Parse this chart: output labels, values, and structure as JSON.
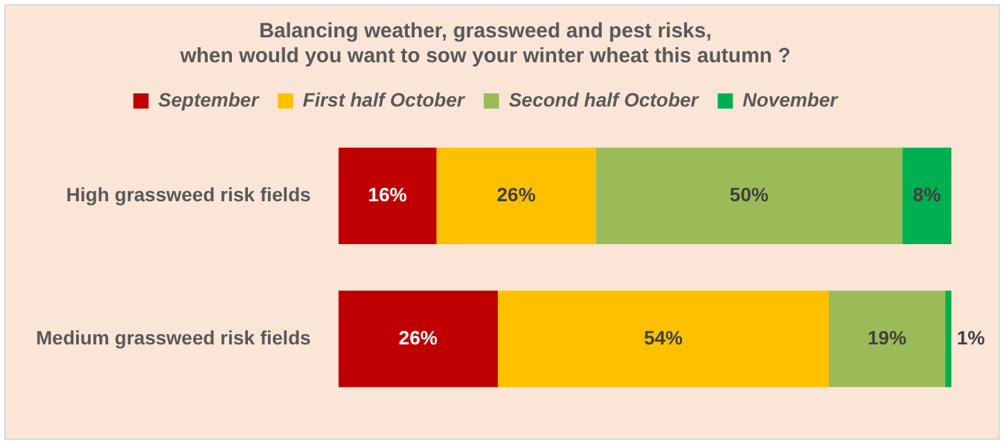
{
  "chart_data": {
    "type": "bar",
    "orientation": "horizontal",
    "stacked": true,
    "title": "Balancing weather, grassweed and pest risks,\nwhen would you want to sow your winter wheat this autumn ?",
    "categories": [
      "High grassweed risk fields",
      "Medium grassweed risk fields"
    ],
    "series": [
      {
        "name": "September",
        "color": "#c00000",
        "values": [
          16,
          26
        ],
        "value_labels": [
          "16%",
          "26%"
        ]
      },
      {
        "name": "First half October",
        "color": "#ffc000",
        "values": [
          26,
          54
        ],
        "value_labels": [
          "26%",
          "54%"
        ]
      },
      {
        "name": "Second half October",
        "color": "#9bbb59",
        "values": [
          50,
          19
        ],
        "value_labels": [
          "50%",
          "19%"
        ]
      },
      {
        "name": "November",
        "color": "#00b050",
        "values": [
          8,
          1
        ],
        "value_labels": [
          "8%",
          "1%"
        ]
      }
    ],
    "legend": "top",
    "tick_labels": "y"
  }
}
